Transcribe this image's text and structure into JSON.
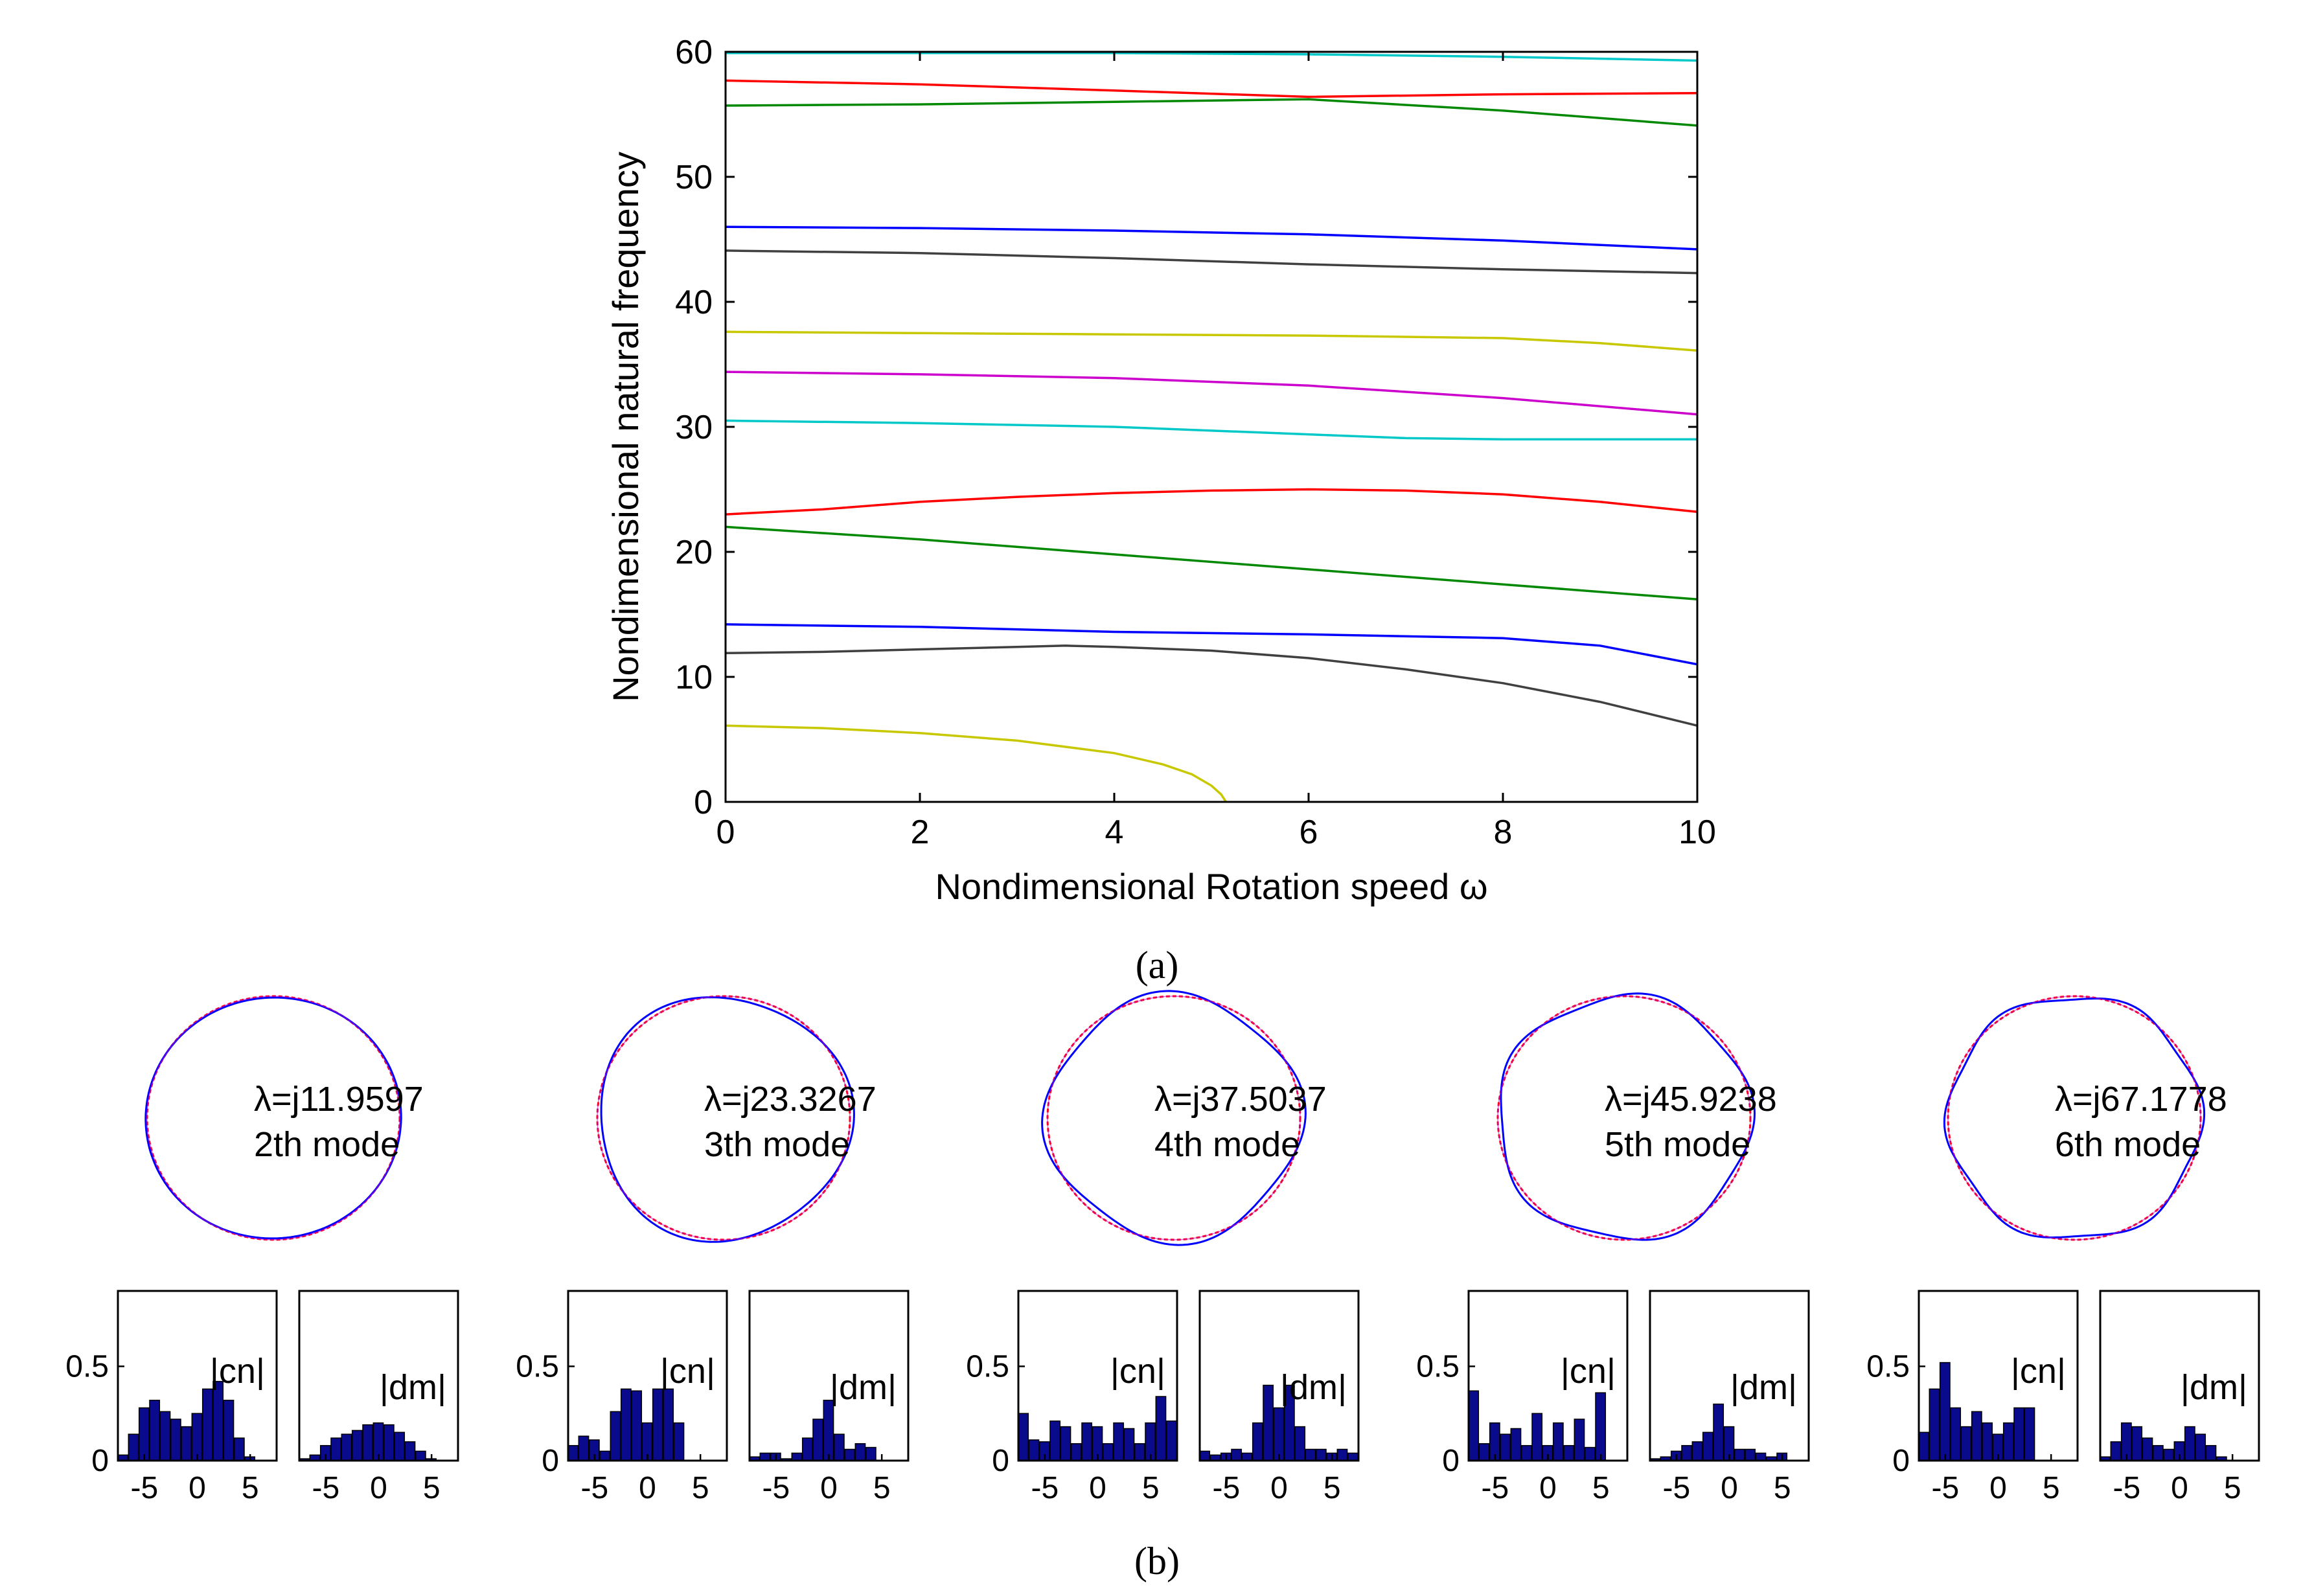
{
  "chart_data": [
    {
      "type": "line",
      "panel": "a",
      "caption": "(a)",
      "xlabel": "Nondimensional Rotation speed ω",
      "ylabel": "Nondimensional natural frequency",
      "xlim": [
        0,
        10
      ],
      "ylim": [
        0,
        60
      ],
      "xticks": [
        "0",
        "2",
        "4",
        "6",
        "8",
        "10"
      ],
      "yticks": [
        "0",
        "10",
        "20",
        "30",
        "40",
        "50",
        "60"
      ],
      "series": [
        {
          "name": "curve-1",
          "color": "#c8c800",
          "x": [
            0,
            1,
            2,
            3,
            4,
            4.5,
            4.8,
            5.0,
            5.1,
            5.15
          ],
          "y": [
            6.1,
            5.9,
            5.5,
            4.9,
            3.9,
            3.0,
            2.2,
            1.3,
            0.6,
            0
          ]
        },
        {
          "name": "curve-2",
          "color": "#404040",
          "x": [
            0,
            1,
            2,
            3,
            3.5,
            4,
            5,
            6,
            7,
            8,
            9,
            10
          ],
          "y": [
            11.9,
            12.0,
            12.2,
            12.4,
            12.5,
            12.4,
            12.1,
            11.5,
            10.6,
            9.5,
            8.0,
            6.1
          ]
        },
        {
          "name": "curve-3",
          "color": "#0000ff",
          "x": [
            0,
            2,
            4,
            6,
            8,
            9,
            10
          ],
          "y": [
            14.2,
            14.0,
            13.6,
            13.4,
            13.1,
            12.5,
            11.0
          ]
        },
        {
          "name": "curve-4",
          "color": "#008800",
          "x": [
            0,
            2,
            4,
            6,
            8,
            10
          ],
          "y": [
            22.0,
            21.0,
            19.8,
            18.6,
            17.4,
            16.2
          ]
        },
        {
          "name": "curve-5",
          "color": "#ff0000",
          "x": [
            0,
            1,
            2,
            3,
            4,
            5,
            6,
            7,
            8,
            9,
            10
          ],
          "y": [
            23.0,
            23.4,
            24.0,
            24.4,
            24.7,
            24.9,
            25.0,
            24.9,
            24.6,
            24.0,
            23.2
          ]
        },
        {
          "name": "curve-6",
          "color": "#00c8c8",
          "x": [
            0,
            2,
            4,
            6,
            7,
            8,
            10
          ],
          "y": [
            30.5,
            30.3,
            30.0,
            29.4,
            29.1,
            29.0,
            29.0
          ]
        },
        {
          "name": "curve-7",
          "color": "#cc00cc",
          "x": [
            0,
            2,
            4,
            6,
            8,
            10
          ],
          "y": [
            34.4,
            34.2,
            33.9,
            33.3,
            32.3,
            31.0
          ]
        },
        {
          "name": "curve-8",
          "color": "#c8c800",
          "x": [
            0,
            2,
            4,
            6,
            8,
            9,
            10
          ],
          "y": [
            37.6,
            37.5,
            37.4,
            37.3,
            37.1,
            36.7,
            36.1
          ]
        },
        {
          "name": "curve-9",
          "color": "#404040",
          "x": [
            0,
            2,
            4,
            6,
            8,
            10
          ],
          "y": [
            44.1,
            43.9,
            43.5,
            43.0,
            42.6,
            42.3
          ]
        },
        {
          "name": "curve-10",
          "color": "#0000ff",
          "x": [
            0,
            2,
            4,
            6,
            8,
            10
          ],
          "y": [
            46.0,
            45.9,
            45.7,
            45.4,
            44.9,
            44.2
          ]
        },
        {
          "name": "curve-11",
          "color": "#008800",
          "x": [
            0,
            2,
            4,
            6,
            8,
            10
          ],
          "y": [
            55.7,
            55.8,
            56.0,
            56.2,
            55.3,
            54.1
          ]
        },
        {
          "name": "curve-12",
          "color": "#ff0000",
          "x": [
            0,
            2,
            4,
            6,
            8,
            10
          ],
          "y": [
            57.7,
            57.4,
            56.9,
            56.4,
            56.6,
            56.7
          ]
        },
        {
          "name": "curve-13",
          "color": "#00c8c8",
          "x": [
            0,
            2,
            4,
            6,
            8,
            10
          ],
          "y": [
            59.9,
            59.9,
            59.9,
            59.8,
            59.6,
            59.3
          ]
        }
      ]
    },
    {
      "type": "modes",
      "panel": "b",
      "caption": "(b)",
      "modes": [
        {
          "lambda": "λ=j11.9597",
          "mode": "2th mode",
          "n": 2,
          "amp": 0.012
        },
        {
          "lambda": "λ=j23.3267",
          "mode": "3th mode",
          "n": 3,
          "amp": 0.035
        },
        {
          "lambda": "λ=j37.5037",
          "mode": "4th mode",
          "n": 4,
          "amp": 0.045
        },
        {
          "lambda": "λ=j45.9238",
          "mode": "5th mode",
          "n": 5,
          "amp": 0.035
        },
        {
          "lambda": "λ=j67.1778",
          "mode": "6th mode",
          "n": 6,
          "amp": 0.03
        }
      ]
    },
    {
      "type": "bar",
      "panel": "b-coefficients",
      "x": [
        -7,
        -6,
        -5,
        -4,
        -3,
        -2,
        -1,
        0,
        1,
        2,
        3,
        4,
        5,
        6,
        7
      ],
      "xticks": [
        "-5",
        "0",
        "5"
      ],
      "yticks": [
        "0",
        "0.5"
      ],
      "ylim": [
        0,
        0.9
      ],
      "groups": [
        {
          "cn_label": "|cn|",
          "dm_label": "|dm|",
          "cn": [
            0.03,
            0.14,
            0.28,
            0.32,
            0.26,
            0.22,
            0.18,
            0.25,
            0.38,
            0.42,
            0.32,
            0.12,
            0.02,
            0.0,
            0.0
          ],
          "dm": [
            0.01,
            0.03,
            0.08,
            0.12,
            0.14,
            0.16,
            0.19,
            0.2,
            0.19,
            0.15,
            0.1,
            0.05,
            0.01,
            0.0,
            0.0
          ]
        },
        {
          "cn_label": "|cn|",
          "dm_label": "|dm|",
          "cn": [
            0.08,
            0.13,
            0.11,
            0.05,
            0.26,
            0.38,
            0.37,
            0.2,
            0.38,
            0.38,
            0.2,
            0.0,
            0.0,
            0.0,
            0.0
          ],
          "dm": [
            0.02,
            0.04,
            0.04,
            0.01,
            0.04,
            0.12,
            0.22,
            0.32,
            0.14,
            0.06,
            0.09,
            0.07,
            0.0,
            0.0,
            0.0
          ]
        },
        {
          "cn_label": "|cn|",
          "dm_label": "|dm|",
          "cn": [
            0.25,
            0.11,
            0.1,
            0.21,
            0.18,
            0.09,
            0.2,
            0.18,
            0.09,
            0.2,
            0.17,
            0.09,
            0.2,
            0.34,
            0.21
          ],
          "dm": [
            0.05,
            0.03,
            0.04,
            0.06,
            0.04,
            0.2,
            0.4,
            0.28,
            0.4,
            0.18,
            0.06,
            0.06,
            0.04,
            0.06,
            0.04
          ]
        },
        {
          "cn_label": "|cn|",
          "dm_label": "|dm|",
          "cn": [
            0.37,
            0.09,
            0.2,
            0.14,
            0.17,
            0.08,
            0.25,
            0.08,
            0.2,
            0.08,
            0.22,
            0.07,
            0.36,
            0.0,
            0.0
          ],
          "dm": [
            0.01,
            0.02,
            0.05,
            0.08,
            0.1,
            0.15,
            0.3,
            0.18,
            0.06,
            0.06,
            0.04,
            0.02,
            0.04,
            0.0,
            0.0
          ]
        },
        {
          "cn_label": "|cn|",
          "dm_label": "|dm|",
          "cn": [
            0.15,
            0.38,
            0.52,
            0.28,
            0.18,
            0.26,
            0.2,
            0.14,
            0.2,
            0.28,
            0.28,
            0.0,
            0.0,
            0.0,
            0.0
          ],
          "dm": [
            0.02,
            0.1,
            0.2,
            0.18,
            0.12,
            0.08,
            0.06,
            0.1,
            0.18,
            0.14,
            0.08,
            0.02,
            0.0,
            0.0,
            0.0
          ]
        }
      ]
    }
  ]
}
